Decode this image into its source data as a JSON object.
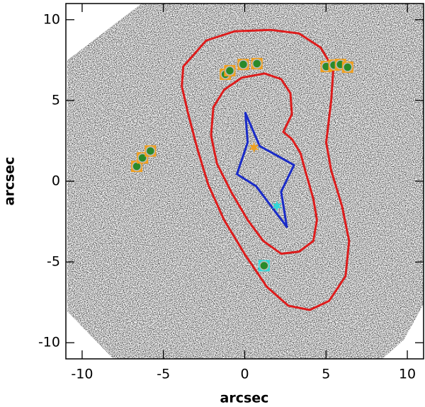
{
  "chart_data": {
    "type": "scatter",
    "xlabel": "arcsec",
    "ylabel": "arcsec",
    "xlim": [
      -11,
      11
    ],
    "ylim": [
      -11,
      11
    ],
    "xticks": [
      -10,
      -5,
      0,
      5,
      10
    ],
    "yticks": [
      -10,
      -5,
      0,
      5,
      10
    ],
    "series": [
      {
        "style": "closed-line",
        "color": "#dd1c1c",
        "x": [
          -3.78,
          -2.37,
          -0.62,
          1.58,
          3.34,
          4.66,
          5.45,
          5.32,
          5.01,
          5.32,
          5.98,
          6.42,
          6.2,
          5.19,
          4.0,
          2.68,
          1.36,
          0.04,
          -1.27,
          -2.24,
          -2.9,
          -3.47,
          -3.87
        ],
        "values": [
          7.1,
          8.71,
          9.28,
          9.37,
          9.15,
          8.28,
          6.97,
          5.01,
          2.4,
          0.65,
          -1.53,
          -3.7,
          -5.88,
          -7.41,
          -7.97,
          -7.71,
          -6.54,
          -4.58,
          -2.4,
          -0.22,
          1.96,
          4.14,
          5.88
        ]
      },
      {
        "style": "closed-line",
        "color": "#dd1c1c",
        "x": [
          1.23,
          2.24,
          2.81,
          2.9,
          2.37,
          2.9,
          3.43,
          3.78,
          4.22,
          4.44,
          4.22,
          3.34,
          2.24,
          1.14,
          0.18,
          -0.84,
          -1.71,
          -2.07,
          -1.93,
          -1.27,
          -0.18
        ],
        "values": [
          6.67,
          6.32,
          5.45,
          4.14,
          3.05,
          2.61,
          1.74,
          0.44,
          -1.09,
          -2.4,
          -3.7,
          -4.36,
          -4.49,
          -3.7,
          -2.4,
          -0.65,
          1.09,
          2.83,
          4.58,
          5.66,
          6.41
        ]
      },
      {
        "style": "closed-line",
        "color": "#1a2bc8",
        "x": [
          0.04,
          0.92,
          3.03,
          2.24,
          2.59,
          0.7,
          -0.48,
          0.18
        ],
        "values": [
          4.23,
          2.18,
          1.0,
          -0.65,
          -2.83,
          -0.31,
          0.44,
          2.4
        ]
      },
      {
        "style": "image",
        "color": "#f0a020",
        "x": [
          -1.19,
          -0.92,
          -0.09,
          0.75,
          5.01,
          5.49,
          5.89,
          6.33,
          -6.64,
          -6.29,
          -5.8
        ],
        "values": [
          6.62,
          6.84,
          7.23,
          7.28,
          7.1,
          7.19,
          7.23,
          7.06,
          0.92,
          1.44,
          1.87
        ]
      },
      {
        "style": "image",
        "color": "#30d8d8",
        "x": [
          1.19
        ],
        "values": [
          -5.23
        ]
      },
      {
        "style": "star",
        "color": "#f0a020",
        "x": [
          0.57
        ],
        "values": [
          2.09
        ]
      },
      {
        "style": "star",
        "color": "#30d8d8",
        "x": [
          1.98
        ],
        "values": [
          -1.53
        ]
      }
    ]
  }
}
